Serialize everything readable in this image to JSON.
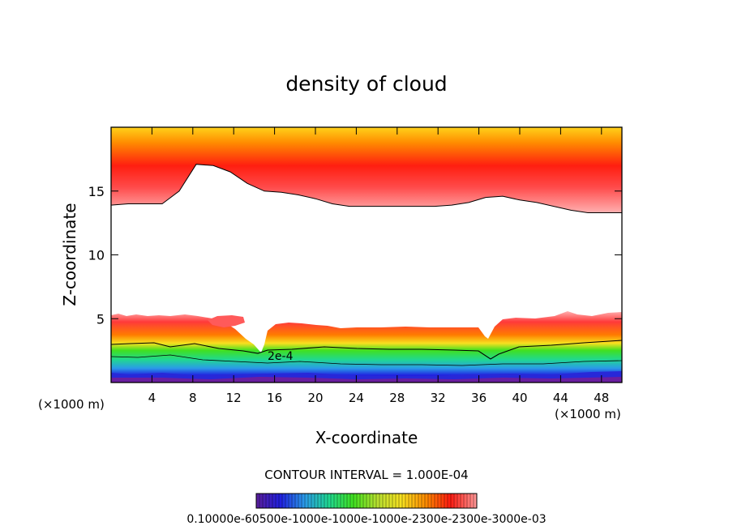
{
  "chart_data": {
    "type": "contour",
    "title": "density of cloud",
    "xlabel": "X-coordinate",
    "ylabel": "Z-coordinate",
    "x_unit_left": "(×1000 m)",
    "x_unit_right": "(×1000 m)",
    "xlim": [
      0,
      50
    ],
    "ylim": [
      0,
      20
    ],
    "xticks": [
      "4",
      "8",
      "12",
      "16",
      "20",
      "24",
      "28",
      "32",
      "36",
      "40",
      "44",
      "48"
    ],
    "yticks": [
      "5",
      "10",
      "15"
    ],
    "contour_labels": [
      "2e-4"
    ],
    "contour_interval_text": "CONTOUR INTERVAL = 1.000E-04",
    "colorbar_text": "0.10000e-60500e-1000e-1000e-1000e-2300e-2300e-3000e-03",
    "colorbar_stops": [
      "#5a1e9a",
      "#2020e0",
      "#2a9be8",
      "#20d890",
      "#40e020",
      "#b8e030",
      "#f8e020",
      "#ff8a00",
      "#ff1a10",
      "#ff9a9a"
    ],
    "upper_layer_boundary_z": [
      13.9,
      14.0,
      14.0,
      14.0,
      15.0,
      17.1,
      17.0,
      16.5,
      15.6,
      15.0,
      14.9,
      14.7,
      14.4,
      14.0,
      13.8,
      13.8,
      13.8,
      13.8,
      13.8,
      13.8,
      13.9,
      14.1,
      14.5,
      14.6,
      14.3,
      14.1,
      13.8,
      13.5,
      13.3,
      13.3,
      13.3
    ]
  }
}
